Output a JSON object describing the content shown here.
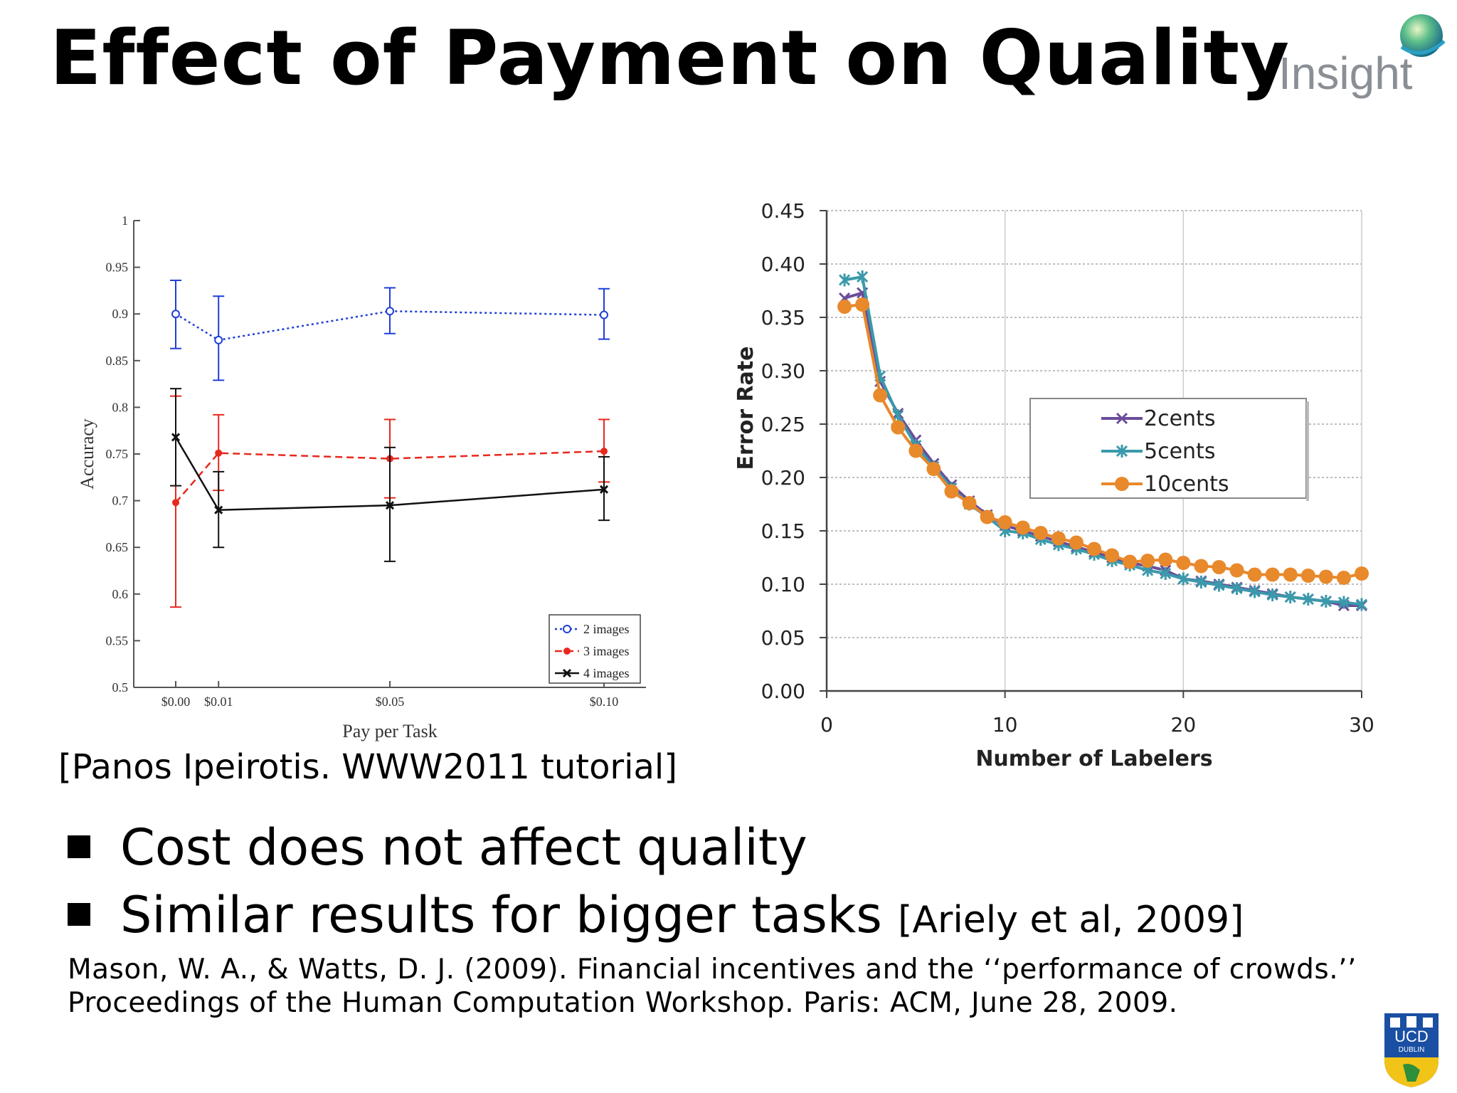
{
  "slide": {
    "title": "Effect of Payment on Quality",
    "logo_text": "Insight",
    "citation": "[Panos Ipeirotis. WWW2011 tutorial]",
    "bullets": [
      {
        "text": "Cost does not affect quality",
        "ref": ""
      },
      {
        "text": "Similar results for bigger tasks",
        "ref": "[Ariely et al, 2009]"
      }
    ],
    "references": [
      "Mason, W. A., & Watts, D. J. (2009). Financial incentives and the ‘‘performance of crowds.’’",
      "Proceedings of the Human Computation Workshop. Paris: ACM, June 28, 2009."
    ],
    "crest_text": [
      "UCD",
      "DUBLIN"
    ]
  },
  "chart_data": [
    {
      "type": "line",
      "xlabel": "Pay per Task",
      "ylabel": "Accuracy",
      "categories": [
        "$0.00",
        "$0.01",
        "$0.05",
        "$0.10"
      ],
      "x": [
        0,
        0.01,
        0.05,
        0.1
      ],
      "ylim": [
        0.5,
        1
      ],
      "yticks": [
        "0.5",
        "0.55",
        "0.6",
        "0.65",
        "0.7",
        "0.75",
        "0.8",
        "0.85",
        "0.9",
        "0.95",
        "1"
      ],
      "legend": "bottom-right",
      "series": [
        {
          "name": "2 images",
          "color": "#1f3fd6",
          "marker": "open-circle",
          "style": "dotted",
          "values": [
            0.9,
            0.872,
            0.903,
            0.899
          ],
          "err_low": [
            0.863,
            0.829,
            0.879,
            0.873
          ],
          "err_high": [
            0.936,
            0.919,
            0.928,
            0.927
          ]
        },
        {
          "name": "3 images",
          "color": "#e8281e",
          "marker": "filled-circle",
          "style": "dashed",
          "values": [
            0.698,
            0.751,
            0.745,
            0.753
          ],
          "err_low": [
            0.586,
            0.711,
            0.703,
            0.72
          ],
          "err_high": [
            0.812,
            0.792,
            0.787,
            0.787
          ]
        },
        {
          "name": "4 images",
          "color": "#111111",
          "marker": "x",
          "style": "solid",
          "values": [
            0.768,
            0.69,
            0.695,
            0.712
          ],
          "err_low": [
            0.716,
            0.65,
            0.635,
            0.679
          ],
          "err_high": [
            0.82,
            0.731,
            0.757,
            0.747
          ]
        }
      ]
    },
    {
      "type": "line",
      "xlabel": "Number of Labelers",
      "ylabel": "Error Rate",
      "xlim": [
        0,
        30
      ],
      "xticks": [
        "0",
        "10",
        "20",
        "30"
      ],
      "ylim": [
        0,
        0.45
      ],
      "yticks": [
        "0.00",
        "0.05",
        "0.10",
        "0.15",
        "0.20",
        "0.25",
        "0.30",
        "0.35",
        "0.40",
        "0.45"
      ],
      "grid": true,
      "legend": "center-right",
      "x": [
        1,
        2,
        3,
        4,
        5,
        6,
        7,
        8,
        9,
        10,
        11,
        12,
        13,
        14,
        15,
        16,
        17,
        18,
        19,
        20,
        21,
        22,
        23,
        24,
        25,
        26,
        27,
        28,
        29,
        30
      ],
      "series": [
        {
          "name": "2cents",
          "color": "#6b4c9a",
          "marker": "x",
          "values": [
            0.368,
            0.373,
            0.29,
            0.26,
            0.235,
            0.213,
            0.193,
            0.178,
            0.165,
            0.155,
            0.15,
            0.145,
            0.14,
            0.135,
            0.13,
            0.125,
            0.12,
            0.117,
            0.113,
            0.105,
            0.103,
            0.1,
            0.097,
            0.094,
            0.091,
            0.088,
            0.086,
            0.084,
            0.08,
            0.08
          ]
        },
        {
          "name": "5cents",
          "color": "#3a9aab",
          "marker": "asterisk",
          "values": [
            0.385,
            0.388,
            0.295,
            0.258,
            0.23,
            0.21,
            0.19,
            0.175,
            0.163,
            0.15,
            0.148,
            0.142,
            0.137,
            0.133,
            0.128,
            0.122,
            0.118,
            0.113,
            0.11,
            0.105,
            0.102,
            0.099,
            0.096,
            0.093,
            0.09,
            0.088,
            0.086,
            0.084,
            0.083,
            0.081
          ]
        },
        {
          "name": "10cents",
          "color": "#e8892c",
          "marker": "filled-circle",
          "values": [
            0.36,
            0.362,
            0.277,
            0.247,
            0.225,
            0.208,
            0.187,
            0.176,
            0.163,
            0.158,
            0.153,
            0.148,
            0.143,
            0.139,
            0.133,
            0.127,
            0.121,
            0.122,
            0.123,
            0.12,
            0.117,
            0.116,
            0.113,
            0.109,
            0.109,
            0.109,
            0.108,
            0.107,
            0.106,
            0.11
          ]
        }
      ]
    }
  ]
}
